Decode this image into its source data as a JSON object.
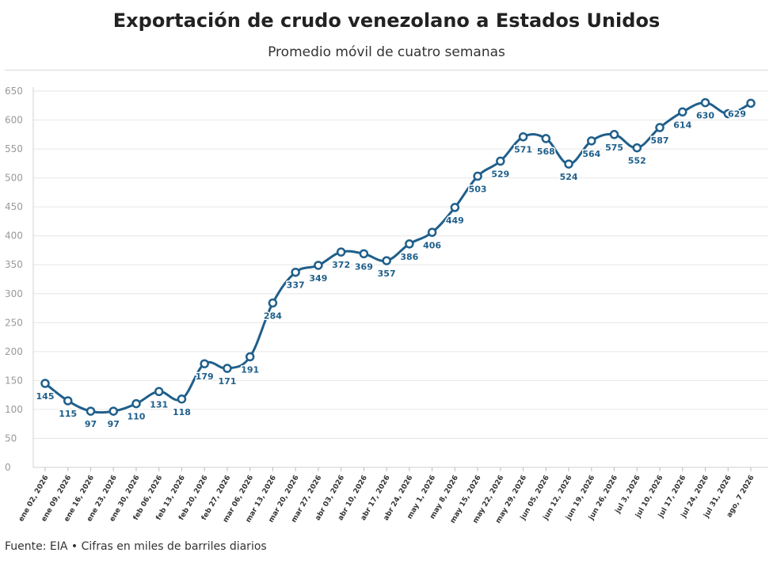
{
  "header": {
    "title": "Exportación de crudo venezolano a Estados Unidos",
    "subtitle": "Promedio móvil de cuatro semanas"
  },
  "footer": {
    "source": "Fuente: EIA • Cifras en miles de barriles diarios"
  },
  "chart_data": {
    "type": "line",
    "title": "Exportación de crudo venezolano a Estados Unidos",
    "subtitle": "Promedio móvil de cuatro semanas",
    "xlabel": "",
    "ylabel": "",
    "ylim": [
      0,
      650
    ],
    "yticks": [
      0,
      50,
      100,
      150,
      200,
      250,
      300,
      350,
      400,
      450,
      500,
      550,
      600,
      650
    ],
    "grid": true,
    "line_color": "#1f5f8b",
    "categories": [
      "ene 02, 2026",
      "ene 09, 2026",
      "ene 16, 2026",
      "ene 23, 2026",
      "ene 30, 2026",
      "feb 06, 2026",
      "feb 13, 2026",
      "feb 20, 2026",
      "feb 27, 2026",
      "mar 06, 2026",
      "mar 13, 2026",
      "mar 20, 2026",
      "mar 27, 2026",
      "abr 03, 2026",
      "abr 10, 2026",
      "abr 17, 2026",
      "abr 24, 2026",
      "may 1, 2026",
      "may 8, 2026",
      "may 15, 2026",
      "may 22, 2026",
      "may 29, 2026",
      "jun 05, 2026",
      "jun 12, 2026",
      "jun 19, 2026",
      "jun 26, 2026",
      "jul 3, 2026",
      "jul 10, 2026",
      "jul 17, 2026",
      "jul 24, 2026",
      "jul 31, 2026",
      "ago, 7 2026"
    ],
    "series": [
      {
        "values": [
          145,
          115,
          97,
          97,
          110,
          131,
          118,
          179,
          171,
          191,
          284,
          337,
          349,
          372,
          369,
          357,
          386,
          406,
          449,
          503,
          529,
          571,
          568,
          524,
          564,
          575,
          552,
          587,
          614,
          630,
          611,
          629
        ]
      }
    ],
    "data_labels": [
      "145",
      "115",
      "97",
      "97",
      "110",
      "131",
      "118",
      "179",
      "171",
      "191",
      "284",
      "337",
      "349",
      "372",
      "369",
      "357",
      "386",
      "406",
      "449",
      "503",
      "529",
      "571",
      "568",
      "524",
      "564",
      "575",
      "552",
      "587",
      "614",
      "630",
      "",
      "629"
    ]
  }
}
